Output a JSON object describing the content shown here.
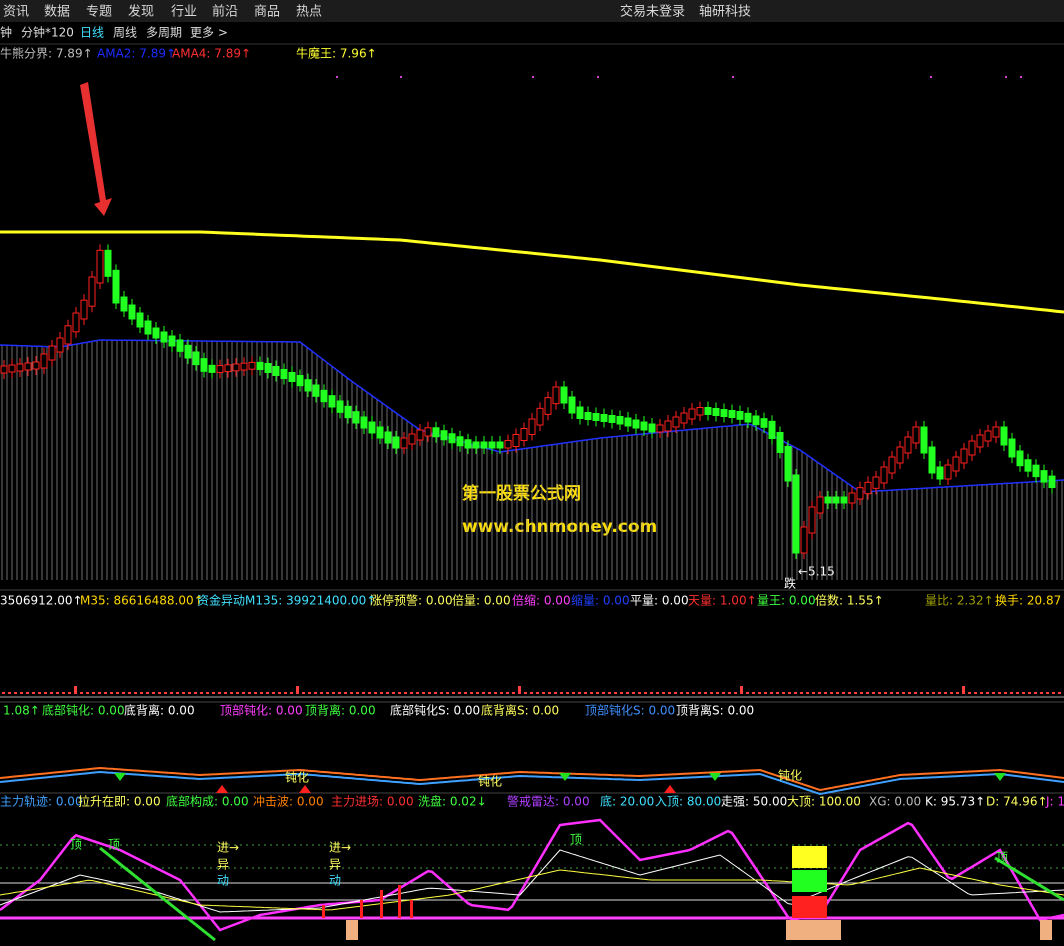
{
  "menu": [
    "资讯",
    "数据",
    "专题",
    "发现",
    "行业",
    "前沿",
    "商品",
    "热点"
  ],
  "status": {
    "login": "交易未登录",
    "stock": "轴研科技"
  },
  "periods": [
    "钟",
    "分钟*120",
    "日线",
    "周线",
    "多周期",
    "更多 >"
  ],
  "main_legend": [
    {
      "text": "牛熊分界: 7.89↑",
      "color": "#bbbbbb"
    },
    {
      "text": "AMA2: 7.89↑",
      "color": "#1c2cff"
    },
    {
      "text": "AMA4: 7.89↑",
      "color": "#ff3030"
    },
    {
      "text": "牛魔王: 7.96↑",
      "color": "#ffff30"
    }
  ],
  "watermark": {
    "name": "第一股票公式网",
    "url": "www.chnmoney.com"
  },
  "main_labels": {
    "low": "←5.15",
    "fall": "跌"
  },
  "volume_legend": [
    {
      "text": "3506912.00↑",
      "color": "#ffffff"
    },
    {
      "text": "M35: 86616488.00↑",
      "color": "#ffd700"
    },
    {
      "text": "资金异动M135: 39921400.00↑",
      "color": "#40e0ff"
    },
    {
      "text": "涨停预警: 0.00",
      "color": "#ffff60"
    },
    {
      "text": "倍量: 0.00",
      "color": "#ffff60"
    },
    {
      "text": "倍缩: 0.00",
      "color": "#ff40ff"
    },
    {
      "text": "缩量: 0.00",
      "color": "#2040ff"
    },
    {
      "text": "平量: 0.00",
      "color": "#ffffff"
    },
    {
      "text": "天量: 1.00↑",
      "color": "#ff3030"
    },
    {
      "text": "量王: 0.00",
      "color": "#40ff40"
    },
    {
      "text": "倍数: 1.55↑",
      "color": "#ffff60"
    },
    {
      "text": "量比: 2.32↑",
      "color": "#a0a000"
    },
    {
      "text": "换手: 20.87↑",
      "color": "#ffd700"
    }
  ],
  "divergence_legend": [
    {
      "text": "1.08↑",
      "color": "#40ff40"
    },
    {
      "text": "底部钝化: 0.00",
      "color": "#40ff40"
    },
    {
      "text": "底背离: 0.00",
      "color": "#ffffff"
    },
    {
      "text": "顶部钝化: 0.00",
      "color": "#ff40ff"
    },
    {
      "text": "顶背离: 0.00",
      "color": "#40ff40"
    },
    {
      "text": "底部钝化S: 0.00",
      "color": "#ffffff"
    },
    {
      "text": "底背离S: 0.00",
      "color": "#ffff60"
    },
    {
      "text": "顶部钝化S: 0.00",
      "color": "#4090ff"
    },
    {
      "text": "顶背离S: 0.00",
      "color": "#ffffff"
    }
  ],
  "divergence_labels": [
    "钝化",
    "钝化",
    "钝化"
  ],
  "signal_legend": [
    {
      "text": "主力轨迹: 0.00",
      "color": "#40a0ff"
    },
    {
      "text": "拉升在即: 0.00",
      "color": "#ffff60"
    },
    {
      "text": "底部构成: 0.00",
      "color": "#40ff40"
    },
    {
      "text": "冲击波: 0.00",
      "color": "#ff8000"
    },
    {
      "text": "主力进场: 0.00",
      "color": "#ff3030"
    },
    {
      "text": "洗盘: 0.02↓",
      "color": "#40ff40"
    },
    {
      "text": "警戒雷达: 0.00",
      "color": "#b040ff"
    },
    {
      "text": "底: 20.00",
      "color": "#40e0ff"
    },
    {
      "text": "入顶: 80.00",
      "color": "#40e0ff"
    },
    {
      "text": "走强: 50.00",
      "color": "#ffffff"
    },
    {
      "text": "大顶: 100.00",
      "color": "#ffff60"
    },
    {
      "text": "XG: 0.00",
      "color": "#bbbbbb"
    },
    {
      "text": "K: 95.73↑",
      "color": "#ffffff"
    },
    {
      "text": "D: 74.96↑",
      "color": "#ffff60"
    },
    {
      "text": "J: 1",
      "color": "#ff40ff"
    }
  ],
  "signal_labels": {
    "top": [
      "顶",
      "顶",
      "顶",
      "顶"
    ],
    "enter": [
      "进→",
      "进→"
    ],
    "move": [
      "异",
      "异"
    ],
    "move2": [
      "动",
      "动"
    ]
  }
}
